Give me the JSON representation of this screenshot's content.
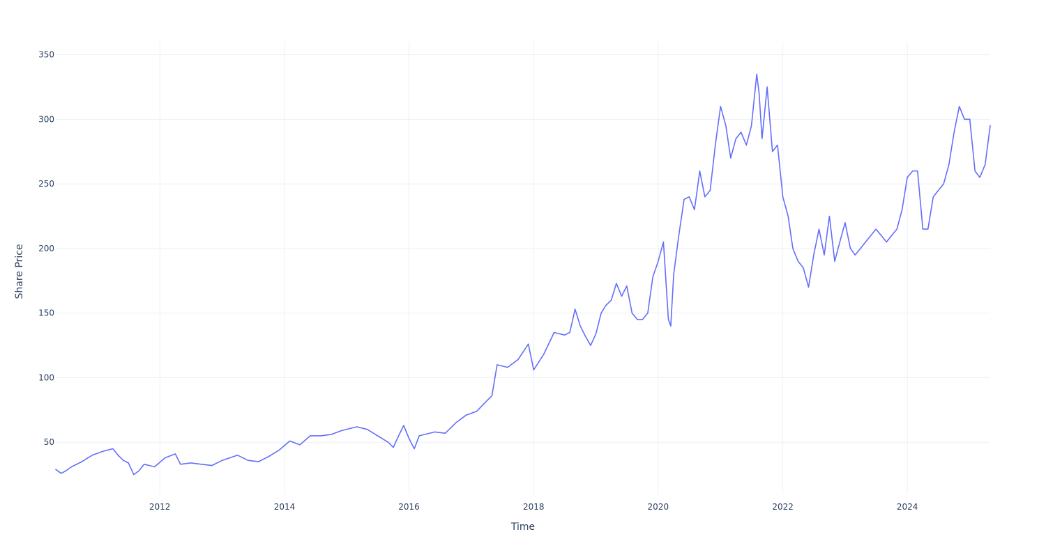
{
  "chart_data": {
    "type": "line",
    "title": "",
    "xlabel": "Time",
    "ylabel": "Share Price",
    "xlim": [
      "2010-05-01",
      "2025-05-01"
    ],
    "ylim": [
      9.7,
      360
    ],
    "grid": true,
    "legend": "none",
    "x_ticks": [
      "2012",
      "2014",
      "2016",
      "2018",
      "2020",
      "2022",
      "2024"
    ],
    "y_ticks": [
      "50",
      "100",
      "150",
      "200",
      "250",
      "300",
      "350"
    ],
    "series": [
      {
        "color": "#636efa",
        "x": [
          "2010-05-01",
          "2010-06-01",
          "2010-07-01",
          "2010-08-01",
          "2010-10-01",
          "2010-12-01",
          "2011-02-01",
          "2011-04-01",
          "2011-05-01",
          "2011-06-01",
          "2011-07-01",
          "2011-08-01",
          "2011-09-01",
          "2011-10-01",
          "2011-11-01",
          "2011-12-01",
          "2012-02-01",
          "2012-04-01",
          "2012-05-01",
          "2012-07-01",
          "2012-09-01",
          "2012-11-01",
          "2013-01-01",
          "2013-04-01",
          "2013-06-01",
          "2013-08-01",
          "2013-10-01",
          "2013-12-01",
          "2014-02-01",
          "2014-04-01",
          "2014-06-01",
          "2014-08-01",
          "2014-10-01",
          "2014-12-01",
          "2015-03-01",
          "2015-05-01",
          "2015-07-01",
          "2015-09-01",
          "2015-10-01",
          "2015-11-01",
          "2015-12-01",
          "2016-01-01",
          "2016-02-01",
          "2016-03-01",
          "2016-06-01",
          "2016-08-01",
          "2016-10-01",
          "2016-12-01",
          "2017-02-01",
          "2017-04-01",
          "2017-05-01",
          "2017-06-01",
          "2017-08-01",
          "2017-10-01",
          "2017-12-01",
          "2018-01-01",
          "2018-03-01",
          "2018-05-01",
          "2018-07-01",
          "2018-08-01",
          "2018-09-01",
          "2018-10-01",
          "2018-11-01",
          "2018-12-01",
          "2019-01-01",
          "2019-02-01",
          "2019-03-01",
          "2019-04-01",
          "2019-05-01",
          "2019-06-01",
          "2019-07-01",
          "2019-08-01",
          "2019-09-01",
          "2019-10-01",
          "2019-11-01",
          "2019-12-01",
          "2020-01-01",
          "2020-02-01",
          "2020-03-01",
          "2020-03-15",
          "2020-04-01",
          "2020-05-01",
          "2020-06-01",
          "2020-07-01",
          "2020-08-01",
          "2020-09-01",
          "2020-10-01",
          "2020-11-01",
          "2020-12-01",
          "2021-01-01",
          "2021-02-01",
          "2021-03-01",
          "2021-04-01",
          "2021-05-01",
          "2021-06-01",
          "2021-07-01",
          "2021-08-01",
          "2021-08-15",
          "2021-09-01",
          "2021-10-01",
          "2021-11-01",
          "2021-12-01",
          "2022-01-01",
          "2022-02-01",
          "2022-03-01",
          "2022-04-01",
          "2022-05-01",
          "2022-06-01",
          "2022-07-01",
          "2022-08-01",
          "2022-09-01",
          "2022-10-01",
          "2022-11-01",
          "2022-12-01",
          "2023-01-01",
          "2023-02-01",
          "2023-03-01",
          "2023-04-01",
          "2023-05-01",
          "2023-06-01",
          "2023-07-01",
          "2023-08-01",
          "2023-09-01",
          "2023-10-01",
          "2023-11-01",
          "2023-12-01",
          "2024-01-01",
          "2024-02-01",
          "2024-03-01",
          "2024-04-01",
          "2024-05-01",
          "2024-06-01",
          "2024-07-01",
          "2024-08-01",
          "2024-09-01",
          "2024-10-01",
          "2024-11-01",
          "2024-12-01",
          "2025-01-01",
          "2025-02-01",
          "2025-03-01",
          "2025-04-01",
          "2025-05-01"
        ],
        "y": [
          29,
          26,
          28,
          31,
          35,
          40,
          43,
          45,
          40,
          36,
          34,
          25,
          28,
          33,
          32,
          31,
          38,
          41,
          33,
          34,
          33,
          32,
          36,
          40,
          36,
          35,
          39,
          44,
          51,
          48,
          55,
          55,
          56,
          59,
          62,
          60,
          55,
          50,
          46,
          55,
          63,
          53,
          45,
          55,
          58,
          57,
          65,
          71,
          74,
          82,
          86,
          110,
          108,
          114,
          126,
          106,
          118,
          135,
          133,
          135,
          153,
          140,
          132,
          125,
          134,
          150,
          156,
          160,
          173,
          163,
          171,
          150,
          145,
          145,
          150,
          178,
          190,
          205,
          145,
          140,
          180,
          210,
          238,
          240,
          230,
          260,
          240,
          245,
          280,
          310,
          295,
          270,
          285,
          290,
          280,
          295,
          335,
          320,
          285,
          325,
          275,
          280,
          240,
          225,
          200,
          190,
          185,
          170,
          195,
          215,
          195,
          225,
          190,
          205,
          220,
          200,
          195,
          200,
          205,
          210,
          215,
          210,
          205,
          210,
          215,
          230,
          255,
          260,
          260,
          215,
          215,
          240,
          245,
          250,
          265,
          290,
          310,
          300,
          300,
          260,
          255,
          265,
          295
        ]
      }
    ]
  }
}
